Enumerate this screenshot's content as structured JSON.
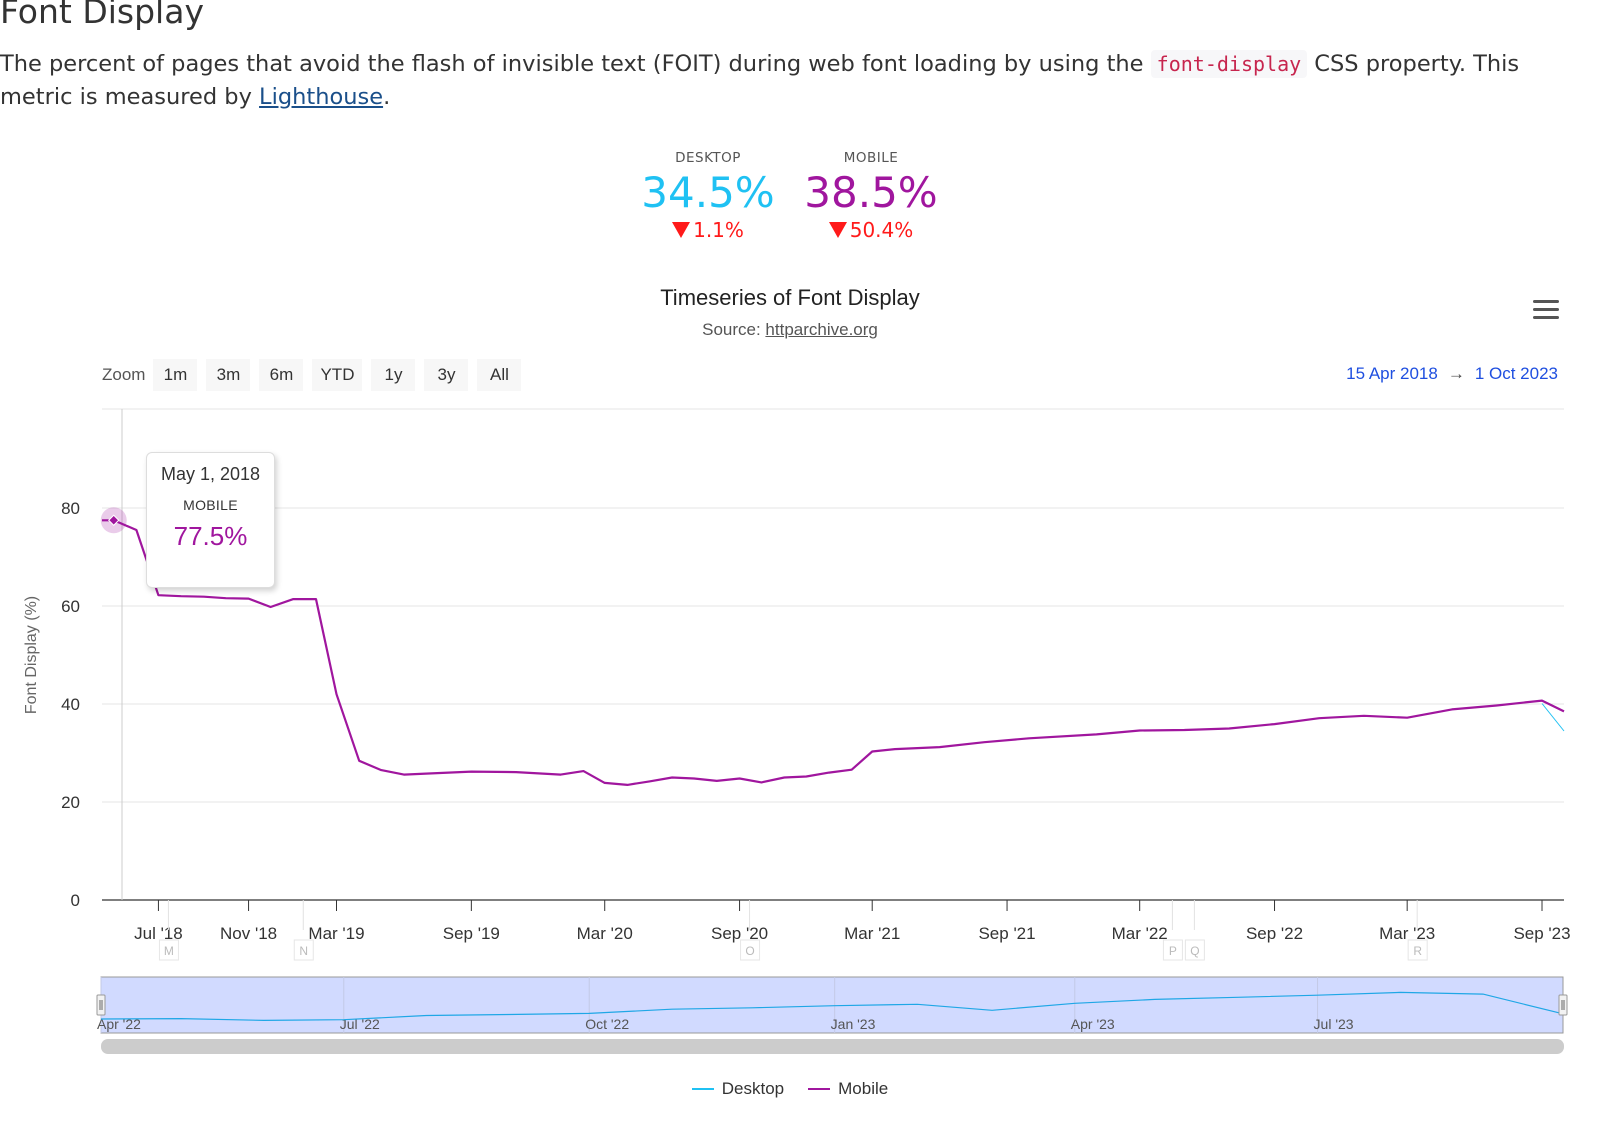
{
  "page": {
    "title": "Font Display",
    "description_pre": "The percent of pages that avoid the flash of invisible text (FOIT) during web font loading by using the ",
    "description_code": "font-display",
    "description_mid": " CSS property. This metric is measured by ",
    "description_link": "Lighthouse",
    "description_post": "."
  },
  "summary": {
    "desktop": {
      "label": "DESKTOP",
      "value": "34.5%",
      "change": "1.1%",
      "color": "#1fc1f3"
    },
    "mobile": {
      "label": "MOBILE",
      "value": "38.5%",
      "change": "50.4%",
      "color": "#a0169e"
    },
    "change_color": "#ff1a1a"
  },
  "chart": {
    "title": "Timeseries of Font Display",
    "subtitle_prefix": "Source: ",
    "subtitle_link": "httparchive.org",
    "menu_icon": "hamburger-menu-icon",
    "zoom_label": "Zoom",
    "zoom_buttons": [
      "1m",
      "3m",
      "6m",
      "YTD",
      "1y",
      "3y",
      "All"
    ],
    "range_from": "15 Apr 2018",
    "range_arrow": "→",
    "range_to": "1 Oct 2023",
    "tooltip": {
      "date": "May 1, 2018",
      "series": "MOBILE",
      "value": "77.5%"
    },
    "legend": [
      {
        "name": "Desktop",
        "color": "#1fc1f3"
      },
      {
        "name": "Mobile",
        "color": "#a0169e"
      }
    ]
  },
  "chart_data": {
    "type": "line",
    "title": "Timeseries of Font Display",
    "ylabel": "Font Display (%)",
    "ylim": [
      0,
      80
    ],
    "y_ticks": [
      0,
      20,
      40,
      60,
      80
    ],
    "xlim": [
      "2018-04-15",
      "2023-10-01"
    ],
    "x_ticks": [
      {
        "date": "2018-07-01",
        "label": "Jul '18"
      },
      {
        "date": "2018-11-01",
        "label": "Nov '18"
      },
      {
        "date": "2019-03-01",
        "label": "Mar '19"
      },
      {
        "date": "2019-09-01",
        "label": "Sep '19"
      },
      {
        "date": "2020-03-01",
        "label": "Mar '20"
      },
      {
        "date": "2020-09-01",
        "label": "Sep '20"
      },
      {
        "date": "2021-03-01",
        "label": "Mar '21"
      },
      {
        "date": "2021-09-01",
        "label": "Sep '21"
      },
      {
        "date": "2022-03-01",
        "label": "Mar '22"
      },
      {
        "date": "2022-09-01",
        "label": "Sep '22"
      },
      {
        "date": "2023-03-01",
        "label": "Mar '23"
      },
      {
        "date": "2023-09-01",
        "label": "Sep '23"
      }
    ],
    "flags": [
      {
        "date": "2018-07-01",
        "label": "M"
      },
      {
        "date": "2019-01-01",
        "label": "N"
      },
      {
        "date": "2020-09-01",
        "label": "O"
      },
      {
        "date": "2022-04-01",
        "label": "P"
      },
      {
        "date": "2022-05-01",
        "label": "Q"
      },
      {
        "date": "2023-03-01",
        "label": "R"
      }
    ],
    "series": [
      {
        "name": "Mobile",
        "color": "#a0169e",
        "points": [
          [
            "2018-04-15",
            77.5
          ],
          [
            "2018-05-01",
            77.5
          ],
          [
            "2018-06-01",
            75.5
          ],
          [
            "2018-07-01",
            62.2
          ],
          [
            "2018-08-01",
            62.0
          ],
          [
            "2018-09-01",
            61.9
          ],
          [
            "2018-10-01",
            61.6
          ],
          [
            "2018-11-01",
            61.5
          ],
          [
            "2018-12-01",
            59.8
          ],
          [
            "2019-01-01",
            61.4
          ],
          [
            "2019-02-01",
            61.4
          ],
          [
            "2019-03-01",
            42.0
          ],
          [
            "2019-04-01",
            28.4
          ],
          [
            "2019-05-01",
            26.5
          ],
          [
            "2019-06-01",
            25.6
          ],
          [
            "2019-07-01",
            25.8
          ],
          [
            "2019-09-01",
            26.2
          ],
          [
            "2019-11-01",
            26.1
          ],
          [
            "2020-01-01",
            25.6
          ],
          [
            "2020-02-01",
            26.3
          ],
          [
            "2020-03-01",
            23.9
          ],
          [
            "2020-04-01",
            23.5
          ],
          [
            "2020-05-01",
            24.2
          ],
          [
            "2020-06-01",
            25.0
          ],
          [
            "2020-07-01",
            24.8
          ],
          [
            "2020-08-01",
            24.3
          ],
          [
            "2020-09-01",
            24.8
          ],
          [
            "2020-10-01",
            24.0
          ],
          [
            "2020-11-01",
            25.0
          ],
          [
            "2020-12-01",
            25.2
          ],
          [
            "2021-01-01",
            26.0
          ],
          [
            "2021-02-01",
            26.6
          ],
          [
            "2021-03-01",
            30.3
          ],
          [
            "2021-04-01",
            30.8
          ],
          [
            "2021-06-01",
            31.2
          ],
          [
            "2021-08-01",
            32.2
          ],
          [
            "2021-10-01",
            33.0
          ],
          [
            "2022-01-01",
            33.8
          ],
          [
            "2022-03-01",
            34.6
          ],
          [
            "2022-05-01",
            34.7
          ],
          [
            "2022-07-01",
            35.0
          ],
          [
            "2022-09-01",
            35.9
          ],
          [
            "2022-11-01",
            37.1
          ],
          [
            "2023-01-01",
            37.6
          ],
          [
            "2023-03-01",
            37.2
          ],
          [
            "2023-05-01",
            38.9
          ],
          [
            "2023-07-01",
            39.7
          ],
          [
            "2023-09-01",
            40.7
          ],
          [
            "2023-10-01",
            38.5
          ]
        ]
      },
      {
        "name": "Desktop",
        "color": "#1fc1f3",
        "points": [
          [
            "2023-09-01",
            40.1
          ],
          [
            "2023-10-01",
            34.5
          ]
        ]
      }
    ],
    "navigator": {
      "series": "Desktop",
      "x_labels": [
        {
          "date": "2022-04-01",
          "label": "Apr '22"
        },
        {
          "date": "2022-07-01",
          "label": "Jul '22"
        },
        {
          "date": "2022-10-01",
          "label": "Oct '22"
        },
        {
          "date": "2023-01-01",
          "label": "Jan '23"
        },
        {
          "date": "2023-04-01",
          "label": "Apr '23"
        },
        {
          "date": "2023-07-01",
          "label": "Jul '23"
        }
      ],
      "xlim": [
        "2022-04-01",
        "2023-10-01"
      ],
      "points": [
        [
          "2022-04-01",
          33.0
        ],
        [
          "2022-05-01",
          33.1
        ],
        [
          "2022-06-01",
          32.6
        ],
        [
          "2022-07-01",
          32.8
        ],
        [
          "2022-08-01",
          34.0
        ],
        [
          "2022-09-01",
          34.3
        ],
        [
          "2022-10-01",
          34.6
        ],
        [
          "2022-11-01",
          35.8
        ],
        [
          "2022-12-01",
          36.2
        ],
        [
          "2023-01-01",
          36.8
        ],
        [
          "2023-02-01",
          37.2
        ],
        [
          "2023-03-01",
          35.5
        ],
        [
          "2023-04-01",
          37.5
        ],
        [
          "2023-05-01",
          38.6
        ],
        [
          "2023-06-01",
          39.2
        ],
        [
          "2023-07-01",
          39.8
        ],
        [
          "2023-08-01",
          40.6
        ],
        [
          "2023-09-01",
          40.1
        ],
        [
          "2023-10-01",
          34.5
        ]
      ]
    }
  }
}
